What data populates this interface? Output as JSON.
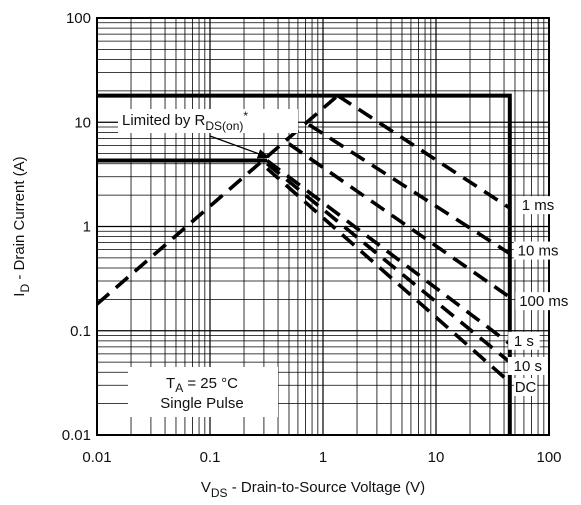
{
  "chart_data": {
    "type": "line",
    "xscale": "log",
    "yscale": "log",
    "xlim": [
      0.01,
      100
    ],
    "ylim": [
      0.01,
      100
    ],
    "grid": true,
    "x_ticks": [
      {
        "value": 0.01,
        "label": "0.01"
      },
      {
        "value": 0.1,
        "label": "0.1"
      },
      {
        "value": 1,
        "label": "1"
      },
      {
        "value": 10,
        "label": "10"
      },
      {
        "value": 100,
        "label": "100"
      }
    ],
    "y_ticks": [
      {
        "value": 0.01,
        "label": "0.01"
      },
      {
        "value": 0.1,
        "label": "0.1"
      },
      {
        "value": 1,
        "label": "1"
      },
      {
        "value": 10,
        "label": "10"
      },
      {
        "value": 100,
        "label": "100"
      }
    ],
    "xlabel": {
      "main": "V",
      "sub": "DS",
      "rest": " -   Drain-to-Source Voltage (V)"
    },
    "ylabel": {
      "main": "I",
      "sub": "D",
      "rest": " -  Drain Current (A)"
    },
    "limit_curves": [
      {
        "style": "solid",
        "points": [
          [
            0.01,
            18
          ],
          [
            45,
            18
          ],
          [
            45,
            0.01
          ]
        ]
      },
      {
        "style": "solid",
        "points": [
          [
            0.01,
            4.3
          ],
          [
            0.32,
            4.3
          ]
        ]
      },
      {
        "style": "dashed",
        "points": [
          [
            0.01,
            0.18
          ],
          [
            1.35,
            18
          ]
        ]
      }
    ],
    "series": [
      {
        "name": "1 ms",
        "style": "dashed",
        "points": [
          [
            1.35,
            18
          ],
          [
            45,
            1.5
          ]
        ]
      },
      {
        "name": "10 ms",
        "style": "dashed",
        "points": [
          [
            0.75,
            9.5
          ],
          [
            45,
            0.55
          ]
        ]
      },
      {
        "name": "100 ms",
        "style": "dashed",
        "points": [
          [
            0.5,
            6.2
          ],
          [
            45,
            0.21
          ]
        ]
      },
      {
        "name": "1 s",
        "style": "dashed",
        "points": [
          [
            0.32,
            4.3
          ],
          [
            45,
            0.075
          ]
        ]
      },
      {
        "name": "10 s",
        "style": "dashed",
        "points": [
          [
            0.32,
            4.0
          ],
          [
            45,
            0.05
          ]
        ]
      },
      {
        "name": "DC",
        "style": "dashed",
        "points": [
          [
            0.32,
            3.6
          ],
          [
            45,
            0.032
          ]
        ]
      }
    ],
    "series_label_positions": [
      {
        "label": "1 ms",
        "x": 80,
        "y": 1.5
      },
      {
        "label": "10 ms",
        "x": 80,
        "y": 0.55
      },
      {
        "label": "100 ms",
        "x": 90,
        "y": 0.18
      },
      {
        "label": "1 s",
        "x": 60,
        "y": 0.075
      },
      {
        "label": "10 s",
        "x": 65,
        "y": 0.043
      },
      {
        "label": "DC",
        "x": 62,
        "y": 0.027
      }
    ],
    "annotations": {
      "limited_by": {
        "pre": "Limited by R",
        "sub": "DS(on)",
        "post": "*",
        "arrow_to": [
          0.33,
          4.6
        ]
      },
      "conditions_line1": {
        "pre": "T",
        "sub": "A",
        "post": " = 25 °C"
      },
      "conditions_line2": "Single Pulse"
    }
  }
}
